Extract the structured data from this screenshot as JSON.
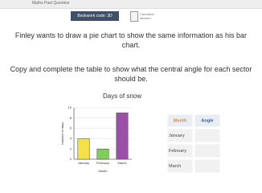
{
  "header": {
    "title": "Maths Past Question",
    "bookwork": "Bookwork code: 3D",
    "calculator": "Calculator allowed"
  },
  "question": {
    "line1": "Finley wants to draw a pie chart to show the same information as his bar chart.",
    "line2": "Copy and complete the table to show what the central angle for each sector should be."
  },
  "chart_data": {
    "type": "bar",
    "title": "Days of snow",
    "x_label": "Month",
    "y_label": "Number of days",
    "categories": [
      "January",
      "February",
      "March"
    ],
    "values": [
      4,
      2,
      9
    ],
    "colors": [
      "#f3e04a",
      "#7fcf5a",
      "#9b4fa8"
    ],
    "ylim": [
      0,
      10
    ],
    "yticks": [
      0,
      2,
      4,
      6,
      8,
      10
    ],
    "grid": true
  },
  "table": {
    "header": [
      "Month",
      "Angle"
    ],
    "rows": [
      [
        "January"
      ],
      [
        "February"
      ],
      [
        "March"
      ]
    ]
  }
}
